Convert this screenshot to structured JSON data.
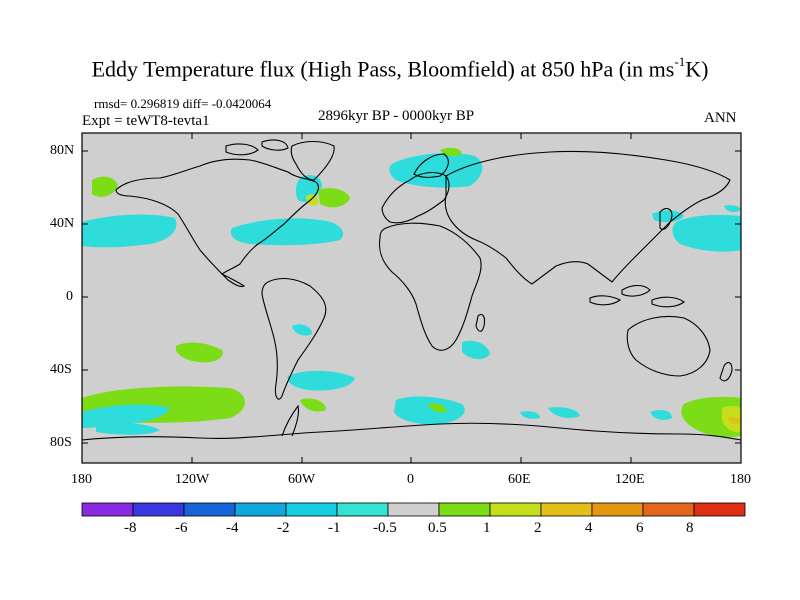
{
  "title": {
    "main": "Eddy Temperature flux (High Pass, Bloomfield) at 850 hPa (in ms",
    "sup": "-1",
    "unit_end": "K)"
  },
  "stats": "rmsd= 0.296819 diff= -0.0420064",
  "experiment": "Expt = teWT8-tevta1",
  "period": "2896kyr BP - 0000kyr BP",
  "season": "ANN",
  "lat_labels": [
    "80N",
    "40N",
    "0",
    "40S",
    "80S"
  ],
  "lon_labels": [
    "180",
    "120W",
    "60W",
    "0",
    "60E",
    "120E",
    "180"
  ],
  "colorbar": {
    "labels": [
      "-8",
      "-6",
      "-4",
      "-2",
      "-1",
      "-0.5",
      "0.5",
      "1",
      "2",
      "4",
      "6",
      "8"
    ],
    "colors": [
      "#8a2be2",
      "#3a36e0",
      "#1565d8",
      "#10a6de",
      "#13cde0",
      "#34e3d2",
      "#cfcfcf",
      "#7cdc15",
      "#c4df1a",
      "#e3bf19",
      "#e4960f",
      "#e3661d",
      "#dd2f14"
    ]
  }
}
